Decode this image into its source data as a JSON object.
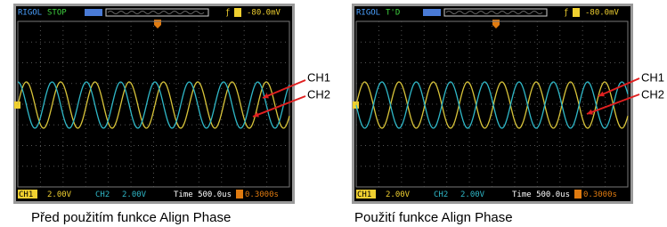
{
  "panels": [
    {
      "brand": "RIGOL",
      "status": "STOP",
      "trigger_level": "-80.0mV",
      "ch1_label": "CH1",
      "ch1_scale": "2.00V",
      "ch2_label": "CH2",
      "ch2_scale": "2.00V",
      "timebase": "Time 500.0us",
      "trigger_offset": "0.3000s",
      "callout_1": "CH1",
      "callout_2": "CH2",
      "caption": "Před použitím funkce Align Phase"
    },
    {
      "brand": "RIGOL",
      "status": "T'D",
      "trigger_level": "-80.0mV",
      "ch1_label": "CH1",
      "ch1_scale": "2.00V",
      "ch2_label": "CH2",
      "ch2_scale": "2.00V",
      "timebase": "Time 500.0us",
      "trigger_offset": "0.3000s",
      "callout_1": "CH1",
      "callout_2": "CH2",
      "caption": "Použití funkce Align Phase"
    }
  ]
}
